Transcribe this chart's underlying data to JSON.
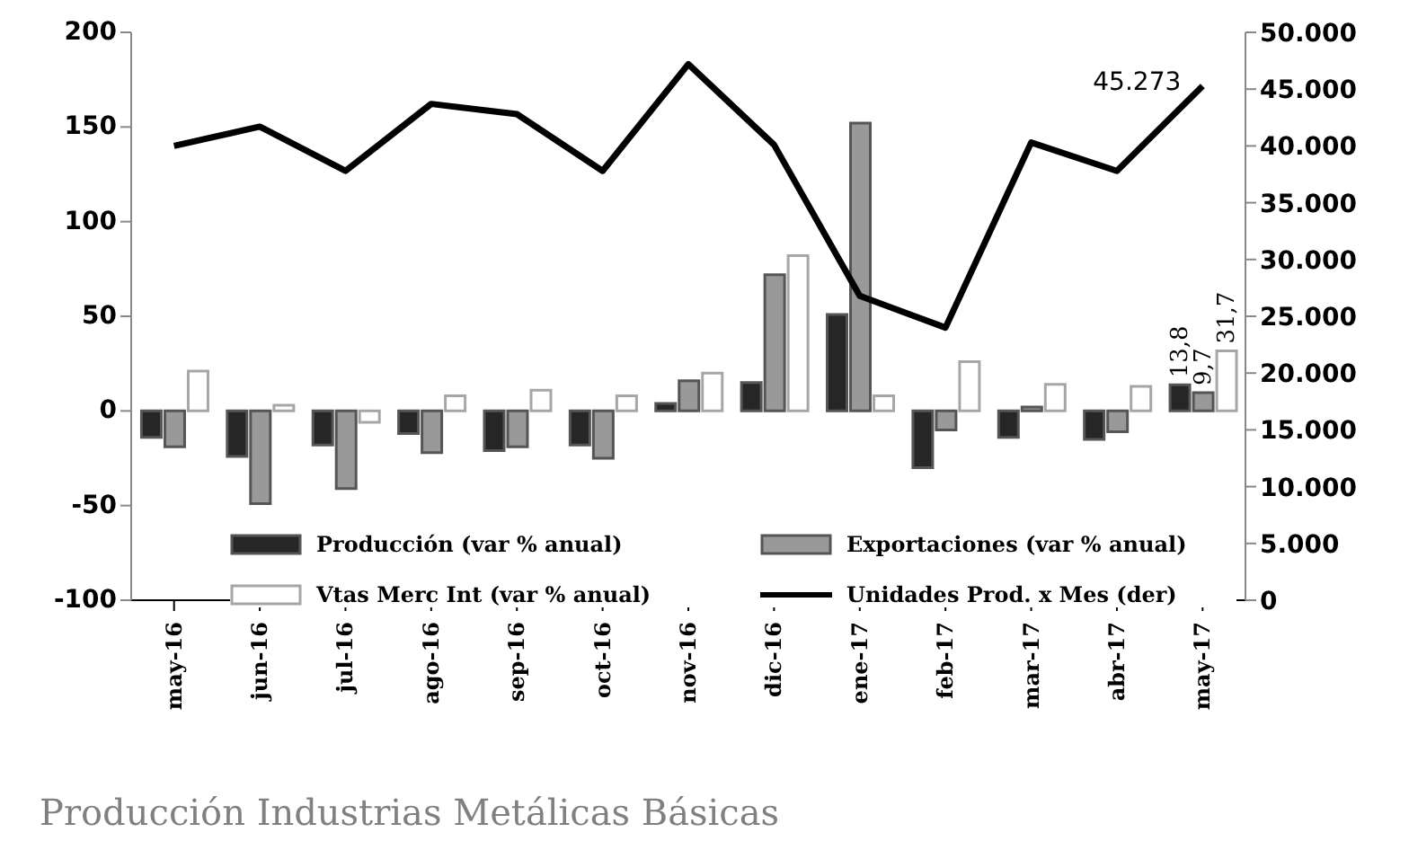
{
  "chart_data": {
    "type": "bar",
    "categories": [
      "may-16",
      "jun-16",
      "jul-16",
      "ago-16",
      "sep-16",
      "oct-16",
      "nov-16",
      "dic-16",
      "ene-17",
      "feb-17",
      "mar-17",
      "abr-17",
      "may-17"
    ],
    "series": [
      {
        "name": "Producción (var % anual)",
        "color": "#262626",
        "values": [
          -14,
          -24,
          -18,
          -12,
          -21,
          -18,
          4,
          15,
          51,
          -30,
          -14,
          -15,
          13.8
        ],
        "value_labels": [
          null,
          null,
          null,
          null,
          null,
          null,
          null,
          null,
          null,
          null,
          null,
          null,
          "13,8"
        ]
      },
      {
        "name": "Exportaciones (var % anual)",
        "color": "#999999",
        "values": [
          -19,
          -49,
          -41,
          -22,
          -19,
          -25,
          16,
          72,
          152,
          -10,
          2,
          -11,
          9.7
        ],
        "value_labels": [
          null,
          null,
          null,
          null,
          null,
          null,
          null,
          null,
          null,
          null,
          null,
          null,
          "9,7"
        ]
      },
      {
        "name": "Vtas Merc Int (var % anual)",
        "color": "#ffffff",
        "values": [
          21,
          3,
          -6,
          8,
          11,
          8,
          20,
          82,
          8,
          26,
          14,
          13,
          31.7
        ],
        "value_labels": [
          null,
          null,
          null,
          null,
          null,
          null,
          null,
          null,
          null,
          null,
          null,
          null,
          "31,7"
        ]
      },
      {
        "name": "Unidades Prod. x Mes (der)",
        "type": "line",
        "axis": "y2",
        "color": "#000000",
        "values": [
          40000,
          41700,
          37800,
          43700,
          42800,
          37800,
          47200,
          40100,
          26800,
          24000,
          40300,
          37800,
          45273
        ],
        "value_labels": [
          null,
          null,
          null,
          null,
          null,
          null,
          null,
          null,
          null,
          null,
          null,
          null,
          "45.273"
        ]
      }
    ],
    "ylim": [
      -100,
      200
    ],
    "yticks": [
      -100,
      -50,
      0,
      50,
      100,
      150,
      200
    ],
    "y2lim": [
      0,
      50000
    ],
    "y2ticks": [
      {
        "value": 0,
        "label": "0"
      },
      {
        "value": 5000,
        "label": "5.000"
      },
      {
        "value": 10000,
        "label": "10.000"
      },
      {
        "value": 15000,
        "label": "15.000"
      },
      {
        "value": 20000,
        "label": "20.000"
      },
      {
        "value": 25000,
        "label": "25.000"
      },
      {
        "value": 30000,
        "label": "30.000"
      },
      {
        "value": 35000,
        "label": "35.000"
      },
      {
        "value": 40000,
        "label": "40.000"
      },
      {
        "value": 45000,
        "label": "45.000"
      },
      {
        "value": 50000,
        "label": "50.000"
      }
    ],
    "legend": "bottom",
    "grid": false,
    "marker": "none",
    "annotations": [
      "Producción Industrias Metálicas Básicas"
    ]
  }
}
